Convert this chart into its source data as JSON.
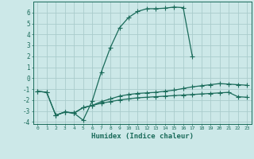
{
  "xlabel": "Humidex (Indice chaleur)",
  "background_color": "#cce8e8",
  "grid_color": "#aacccc",
  "line_color": "#1a6b5a",
  "xlim": [
    -0.5,
    23.5
  ],
  "ylim": [
    -4.2,
    7.0
  ],
  "xticks": [
    0,
    1,
    2,
    3,
    4,
    5,
    6,
    7,
    8,
    9,
    10,
    11,
    12,
    13,
    14,
    15,
    16,
    17,
    18,
    19,
    20,
    21,
    22,
    23
  ],
  "yticks": [
    -4,
    -3,
    -2,
    -1,
    0,
    1,
    2,
    3,
    4,
    5,
    6
  ],
  "series1_x": [
    0,
    1,
    2,
    3,
    4,
    5,
    6,
    7,
    8,
    9,
    10,
    11,
    12,
    13,
    14,
    15,
    16,
    17
  ],
  "series1_y": [
    -1.2,
    -1.3,
    -3.4,
    -3.1,
    -3.2,
    -3.85,
    -2.1,
    0.55,
    2.8,
    4.6,
    5.55,
    6.1,
    6.35,
    6.35,
    6.4,
    6.5,
    6.45,
    2.0
  ],
  "series2_x": [
    0,
    1,
    2,
    3,
    4,
    5,
    6,
    7,
    8,
    9,
    10,
    11,
    12,
    13,
    14,
    15,
    16,
    17,
    18,
    19,
    20,
    21,
    22,
    23
  ],
  "series2_y": [
    -1.2,
    -1.3,
    -3.4,
    -3.1,
    -3.2,
    -2.7,
    -2.5,
    -2.15,
    -1.9,
    -1.65,
    -1.5,
    -1.4,
    -1.35,
    -1.3,
    -1.2,
    -1.1,
    -0.95,
    -0.8,
    -0.7,
    -0.6,
    -0.5,
    -0.55,
    -0.6,
    -0.65
  ],
  "series3_x": [
    2,
    3,
    4,
    5,
    6,
    7,
    8,
    9,
    10,
    11,
    12,
    13,
    14,
    15,
    16,
    17,
    18,
    19,
    20,
    21,
    22,
    23
  ],
  "series3_y": [
    -3.4,
    -3.1,
    -3.2,
    -2.7,
    -2.5,
    -2.3,
    -2.15,
    -2.0,
    -1.9,
    -1.8,
    -1.75,
    -1.7,
    -1.65,
    -1.6,
    -1.55,
    -1.5,
    -1.45,
    -1.4,
    -1.35,
    -1.3,
    -1.7,
    -1.75
  ]
}
